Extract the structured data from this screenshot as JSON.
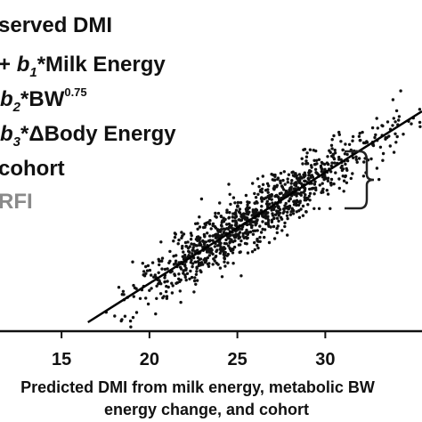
{
  "chart_data": {
    "type": "scatter",
    "title": "",
    "equation": {
      "line1": "served DMI",
      "line2_prefix": "+ ",
      "line2_coef": "b",
      "line2_sub": "1",
      "line2_rest": "*Milk Energy",
      "line3_coef": "b",
      "line3_sub": "2",
      "line3_rest": "*BW",
      "line3_sup": "0.75",
      "line4_coef": "b",
      "line4_sub": "3",
      "line4_rest": "*ΔBody Energy",
      "line5": "cohort",
      "line6": "RFI"
    },
    "xlabel_line1": "Predicted DMI from milk energy, metabolic BW",
    "xlabel_line2": "energy change, and cohort",
    "ylabel": "",
    "xlim": [
      11.5,
      35.5
    ],
    "x_ticks": [
      15,
      20,
      25,
      30
    ],
    "x_tick_labels": [
      "15",
      "20",
      "25",
      "30"
    ],
    "y_range_at_edges": [
      15,
      36
    ],
    "grid": false,
    "fit_line": {
      "x1": 16.5,
      "y1": 16.6,
      "x2": 35.5,
      "y2": 35.1
    },
    "points": {
      "count": 1100,
      "x_range": [
        16.5,
        35.5
      ],
      "residual_sd": 1.3
    },
    "colors": {
      "points": "#111111",
      "line": "#000000",
      "text": "#111111",
      "rfi_text": "#8a8a8a"
    }
  }
}
